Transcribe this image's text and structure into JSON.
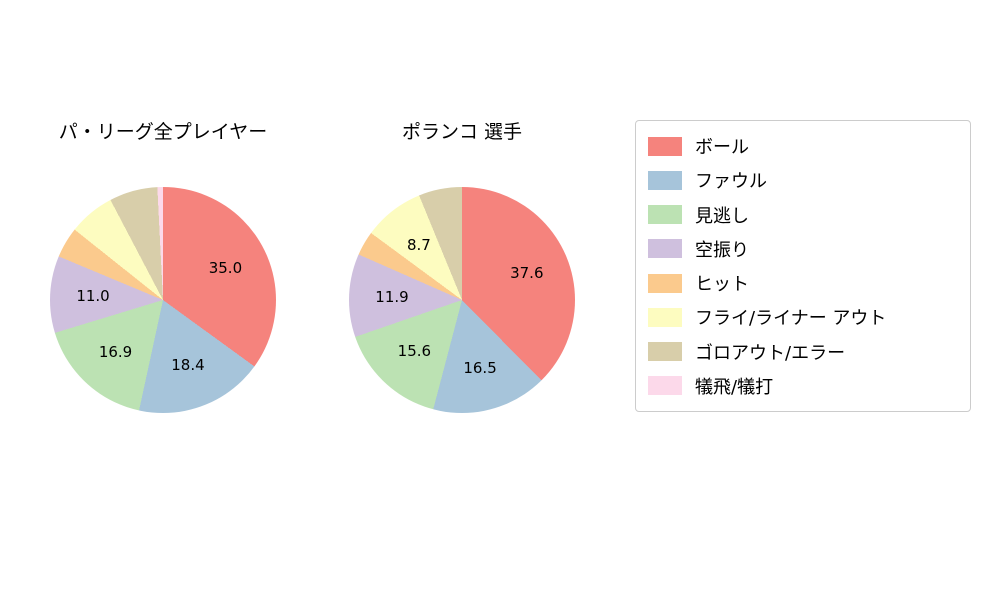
{
  "chart_data": {
    "type": "pie",
    "unit": "percent",
    "legend_position": "right",
    "categories": [
      "ボール",
      "ファウル",
      "見逃し",
      "空振り",
      "ヒット",
      "フライ/ライナー アウト",
      "ゴロアウト/エラー",
      "犠飛/犠打"
    ],
    "colors": [
      "#f5837d",
      "#a6c4da",
      "#bce2b3",
      "#cfc0de",
      "#fbca8d",
      "#fdfcc0",
      "#d8ceaa",
      "#fcd9ea"
    ],
    "start_angle_deg": 0,
    "direction": "clockwise",
    "label_radius": 0.62,
    "pies": [
      {
        "title": "パ・リーグ全プレイヤー",
        "values": [
          35.0,
          18.4,
          16.9,
          11.0,
          4.4,
          6.6,
          6.9,
          0.8
        ],
        "labels": [
          "35.0",
          "18.4",
          "16.9",
          "11.0",
          null,
          null,
          null,
          null
        ]
      },
      {
        "title": "ポランコ  選手",
        "values": [
          37.6,
          16.5,
          15.6,
          11.9,
          3.5,
          8.7,
          6.2,
          0.0
        ],
        "labels": [
          "37.6",
          "16.5",
          "15.6",
          "11.9",
          null,
          "8.7",
          null,
          null
        ]
      }
    ]
  }
}
